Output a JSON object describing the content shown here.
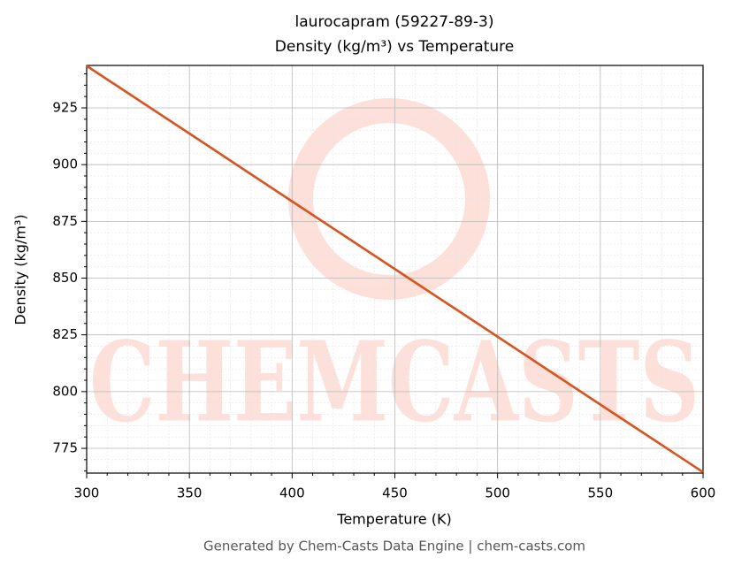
{
  "chart_data": {
    "type": "line",
    "title": "laurocapram (59227-89-3)",
    "subtitle": "Density (kg/m³) vs Temperature",
    "xlabel": "Temperature (K)",
    "ylabel": "Density (kg/m³)",
    "footer": "Generated by Chem-Casts Data Engine | chem-casts.com",
    "watermark": "CHEMCASTS",
    "x": [
      300,
      350,
      400,
      450,
      500,
      550,
      600
    ],
    "series": [
      {
        "name": "Density",
        "color": "#d9531e",
        "values": [
          943.5,
          913.7,
          883.8,
          854.0,
          824.2,
          794.3,
          764.5
        ]
      }
    ],
    "xlim": [
      300,
      600
    ],
    "ylim": [
      764.1,
      943.7
    ],
    "xticks": [
      300,
      350,
      400,
      450,
      500,
      550,
      600
    ],
    "yticks": [
      775,
      800,
      825,
      850,
      875,
      900,
      925
    ],
    "xminorticks": [
      310,
      320,
      330,
      340,
      360,
      370,
      380,
      390,
      410,
      420,
      430,
      440,
      460,
      470,
      480,
      490,
      510,
      520,
      530,
      540,
      560,
      570,
      580,
      590
    ],
    "yminorticks": [
      765,
      770,
      780,
      785,
      790,
      795,
      805,
      810,
      815,
      820,
      830,
      835,
      840,
      845,
      855,
      860,
      865,
      870,
      880,
      885,
      890,
      895,
      905,
      910,
      915,
      920,
      930,
      935,
      940
    ],
    "grid": true,
    "minor_grid": true
  }
}
